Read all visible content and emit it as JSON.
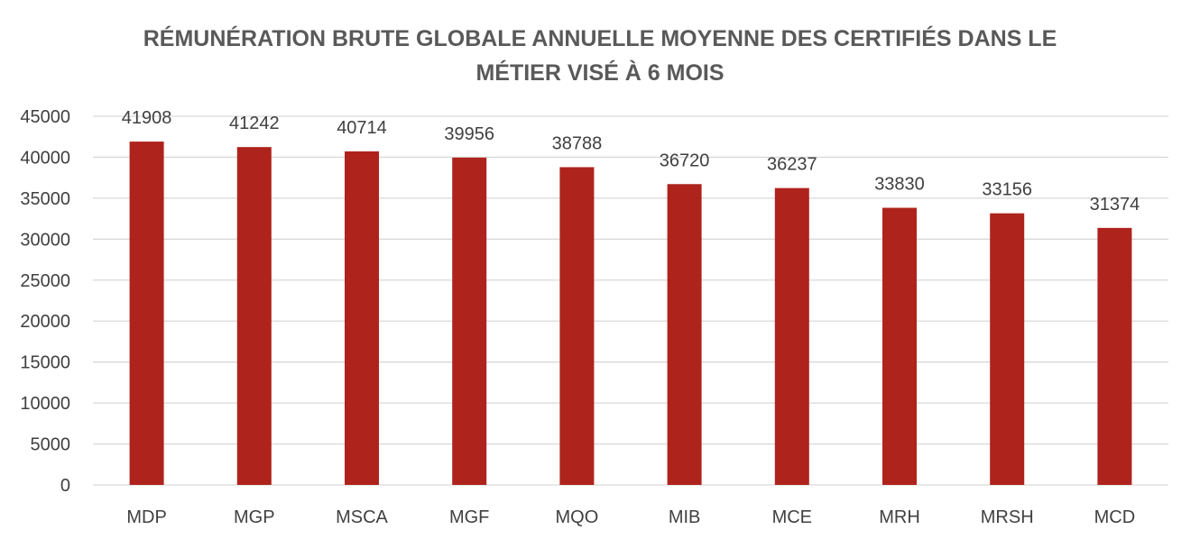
{
  "chart_data": {
    "type": "bar",
    "title_lines": [
      "RÉMUNÉRATION BRUTE GLOBALE ANNUELLE MOYENNE DES CERTIFIÉS DANS LE",
      "MÉTIER VISÉ À 6 MOIS"
    ],
    "categories": [
      "MDP",
      "MGP",
      "MSCA",
      "MGF",
      "MQO",
      "MIB",
      "MCE",
      "MRH",
      "MRSH",
      "MCD"
    ],
    "values": [
      41908,
      41242,
      40714,
      39956,
      38788,
      36720,
      36237,
      33830,
      33156,
      31374
    ],
    "ylim": [
      0,
      45000
    ],
    "yticks": [
      0,
      5000,
      10000,
      15000,
      20000,
      25000,
      30000,
      35000,
      40000,
      45000
    ],
    "grid": true,
    "data_labels": true,
    "bar_color": "#AE231C",
    "grid_color": "#D9D9D9"
  }
}
